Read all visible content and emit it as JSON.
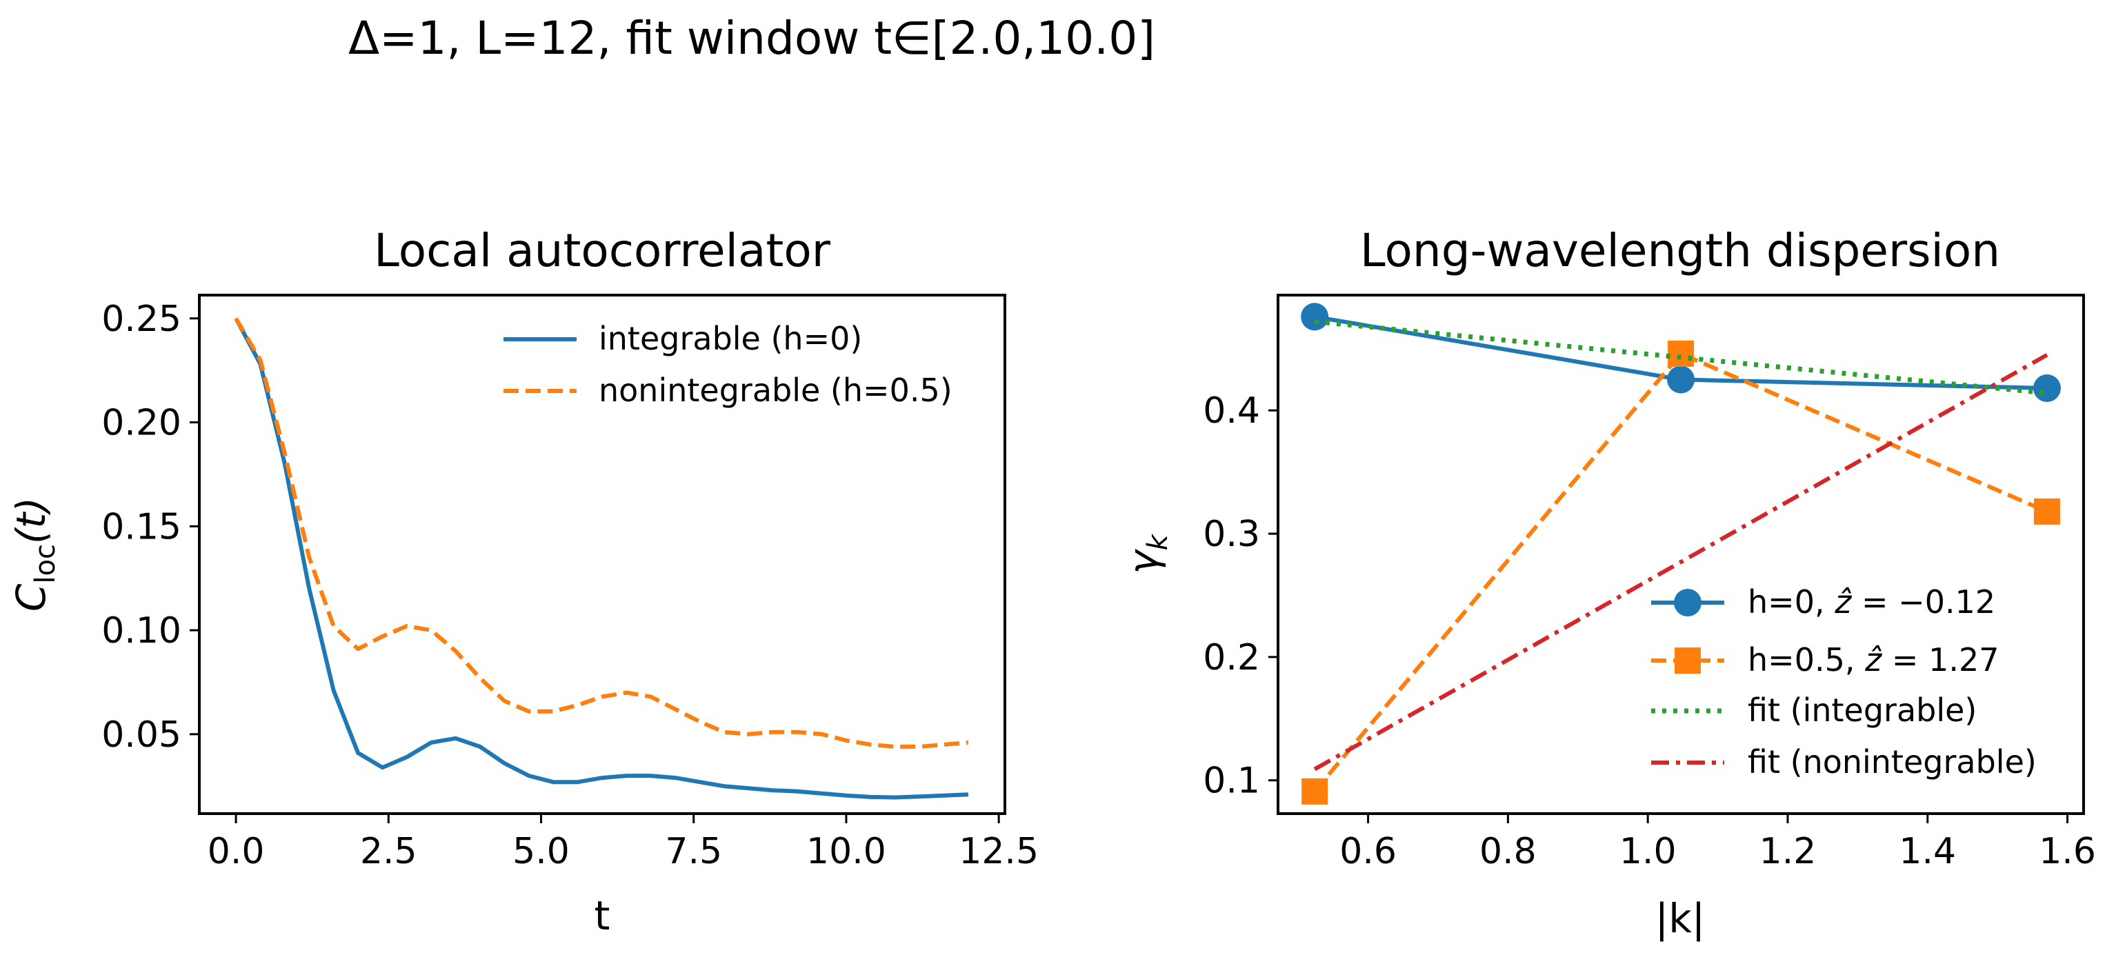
{
  "suptitle": "Δ=1, L=12, fit window t∈[2.0,10.0]",
  "colors": {
    "blue": "#1f77b4",
    "orange": "#ff7f0e",
    "green": "#2ca02c",
    "red": "#d62728"
  },
  "chart_data": [
    {
      "type": "line",
      "title": "Local autocorrelator",
      "xlabel": "t",
      "ylabel_main": "C",
      "ylabel_sub": "loc",
      "ylabel_tail": "(t)",
      "xlim": [
        -0.6,
        12.6
      ],
      "ylim": [
        0.0118,
        0.2612
      ],
      "xticks": [
        0.0,
        2.5,
        5.0,
        7.5,
        10.0,
        12.5
      ],
      "xtick_labels": [
        "0.0",
        "2.5",
        "5.0",
        "7.5",
        "10.0",
        "12.5"
      ],
      "yticks": [
        0.05,
        0.1,
        0.15,
        0.2,
        0.25
      ],
      "ytick_labels": [
        "0.05",
        "0.10",
        "0.15",
        "0.20",
        "0.25"
      ],
      "legend_position": "upper-right",
      "x": [
        0.0,
        0.4,
        0.8,
        1.2,
        1.6,
        2.0,
        2.4,
        2.8,
        3.2,
        3.6,
        4.0,
        4.4,
        4.8,
        5.2,
        5.6,
        6.0,
        6.4,
        6.8,
        7.2,
        7.6,
        8.0,
        8.4,
        8.8,
        9.2,
        9.6,
        10.0,
        10.4,
        10.8,
        11.2,
        11.6,
        12.0
      ],
      "series": [
        {
          "name": "integrable (h=0)",
          "color": "#1f77b4",
          "style": "solid",
          "values": [
            0.25,
            0.228,
            0.18,
            0.12,
            0.071,
            0.041,
            0.034,
            0.039,
            0.046,
            0.048,
            0.044,
            0.036,
            0.03,
            0.027,
            0.027,
            0.029,
            0.03,
            0.03,
            0.029,
            0.027,
            0.025,
            0.024,
            0.023,
            0.0225,
            0.0215,
            0.0205,
            0.0198,
            0.0196,
            0.02,
            0.0205,
            0.021
          ]
        },
        {
          "name": "nonintegrable (h=0.5)",
          "color": "#ff7f0e",
          "style": "dashed",
          "values": [
            0.25,
            0.23,
            0.185,
            0.135,
            0.102,
            0.091,
            0.097,
            0.102,
            0.1,
            0.09,
            0.077,
            0.066,
            0.061,
            0.061,
            0.064,
            0.068,
            0.07,
            0.068,
            0.062,
            0.056,
            0.051,
            0.05,
            0.051,
            0.051,
            0.05,
            0.047,
            0.045,
            0.044,
            0.044,
            0.045,
            0.046
          ]
        }
      ]
    },
    {
      "type": "line",
      "title": "Long-wavelength dispersion",
      "xlabel": "|k|",
      "ylabel": "γ",
      "ylabel_sub": "k",
      "xlim": [
        0.4712,
        1.6231
      ],
      "ylim": [
        0.073,
        0.4935
      ],
      "xticks": [
        0.6,
        0.8,
        1.0,
        1.2,
        1.4,
        1.6
      ],
      "xtick_labels": [
        "0.6",
        "0.8",
        "1.0",
        "1.2",
        "1.4",
        "1.6"
      ],
      "yticks": [
        0.1,
        0.2,
        0.3,
        0.4
      ],
      "ytick_labels": [
        "0.1",
        "0.2",
        "0.3",
        "0.4"
      ],
      "legend_position": "lower-right",
      "series": [
        {
          "name_prefix": "h=0, ",
          "name_value": "−0.12",
          "color": "#1f77b4",
          "style": "solid",
          "marker": "circle",
          "x": [
            0.5236,
            1.0472,
            1.5708
          ],
          "values": [
            0.476,
            0.425,
            0.418
          ]
        },
        {
          "name_prefix": "h=0.5, ",
          "name_value": "1.27",
          "color": "#ff7f0e",
          "style": "dashed",
          "marker": "square",
          "x": [
            0.5236,
            1.0472,
            1.5708
          ],
          "values": [
            0.091,
            0.446,
            0.318
          ]
        },
        {
          "name": "fit (integrable)",
          "color": "#2ca02c",
          "style": "dotted",
          "marker": "none",
          "x": [
            0.5236,
            1.5708
          ],
          "values": [
            0.472,
            0.414
          ]
        },
        {
          "name": "fit (nonintegrable)",
          "color": "#d62728",
          "style": "dashdot",
          "marker": "none",
          "x": [
            0.5236,
            1.5708
          ],
          "values": [
            0.109,
            0.445
          ]
        }
      ]
    }
  ]
}
